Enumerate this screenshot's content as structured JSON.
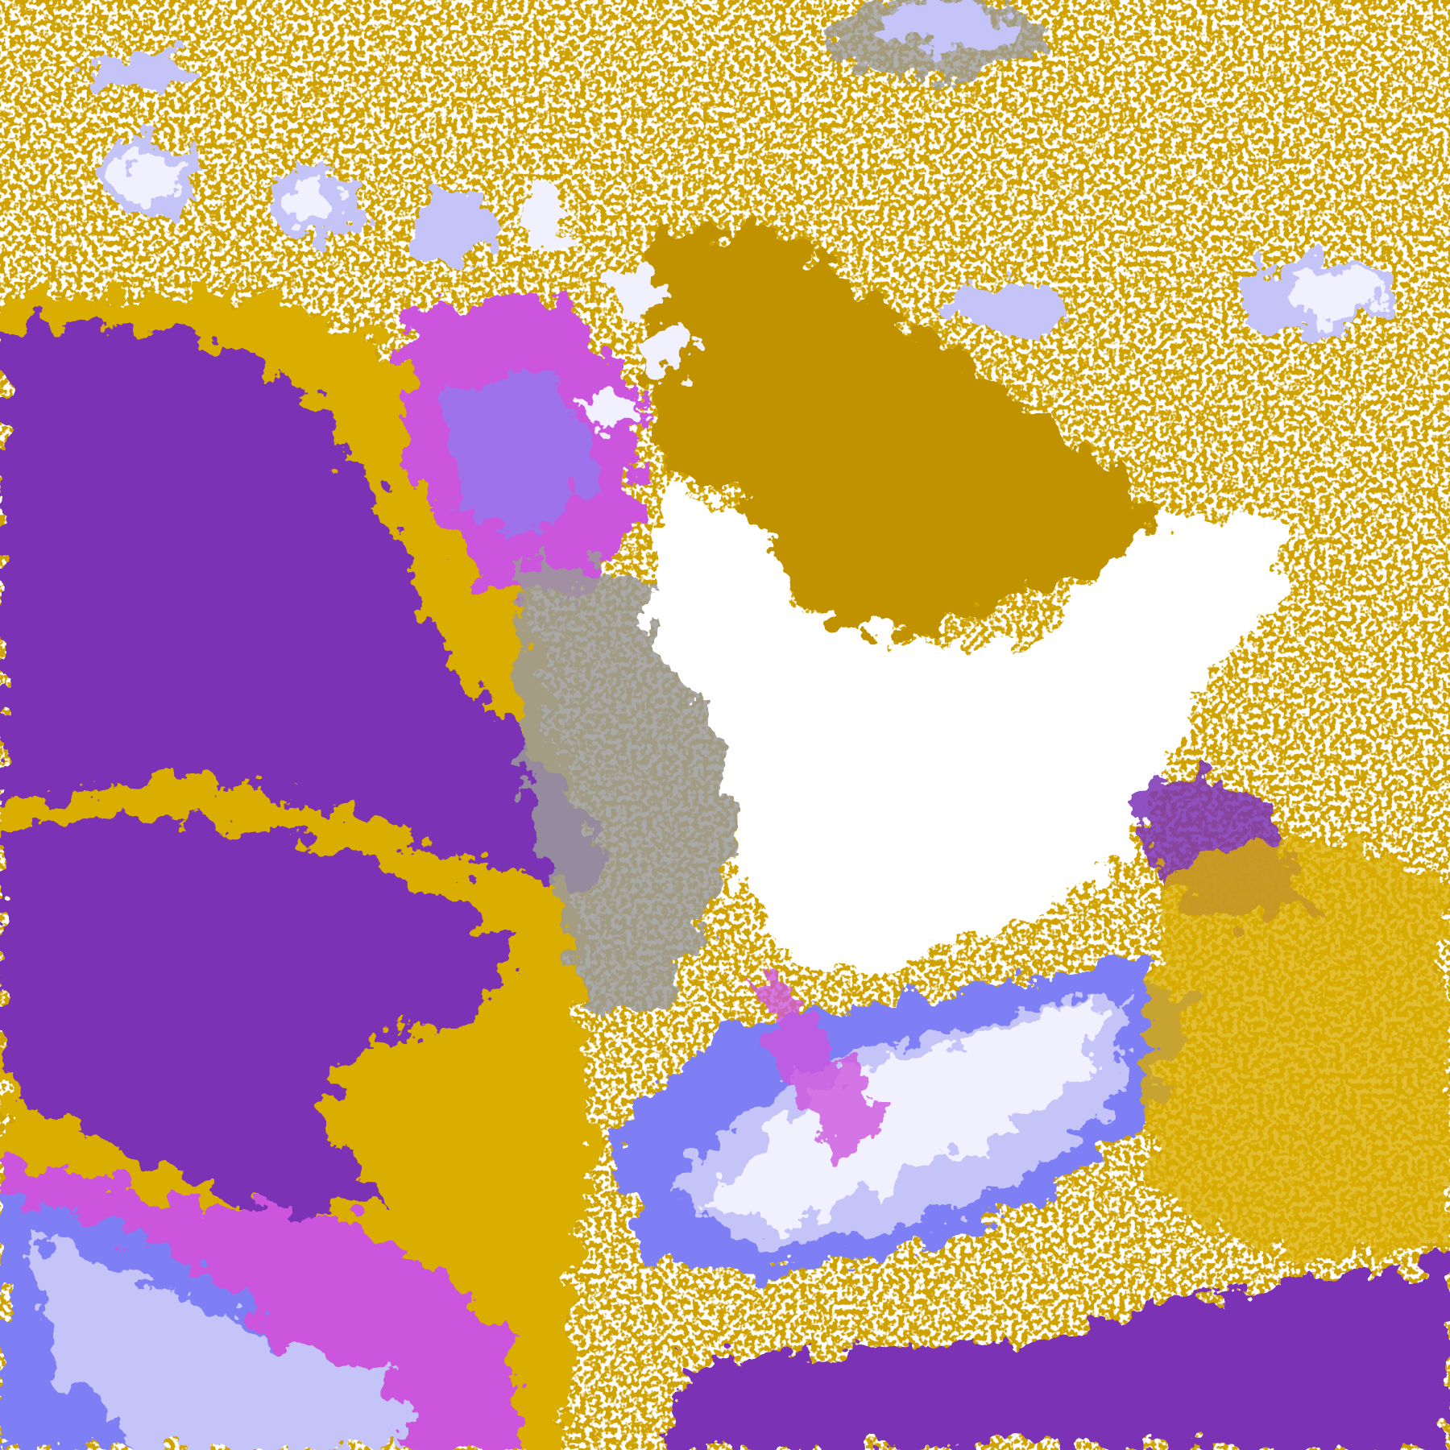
{
  "image": {
    "kind": "classified satellite imagery",
    "palette": {
      "background": "#FFFFFF",
      "gold": "#D9AE00",
      "dark_gold": "#C09200",
      "purple": "#7B33B5",
      "magenta": "#CC55DD",
      "periwinkle": "#7F7FF5",
      "lavender": "#C4C4F8",
      "pale_lavender": "#F0F0FF",
      "gray": "#9A9A9A"
    }
  }
}
